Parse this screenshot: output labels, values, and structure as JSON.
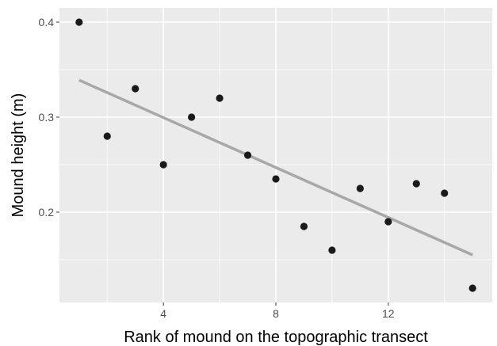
{
  "chart_data": {
    "type": "scatter",
    "title": "",
    "xlabel": "Rank of mound on the topographic transect",
    "ylabel": "Mound height (m)",
    "xlim": [
      0.3,
      15.7
    ],
    "ylim": [
      0.105,
      0.415
    ],
    "x_ticks": [
      4,
      8,
      12
    ],
    "x_tick_labels": [
      "4",
      "8",
      "12"
    ],
    "x_minor_ticks": [
      2,
      6,
      10,
      14
    ],
    "y_ticks": [
      0.2,
      0.3,
      0.4
    ],
    "y_tick_labels": [
      "0.2",
      "0.3",
      "0.4"
    ],
    "y_minor_ticks": [
      0.15,
      0.25,
      0.35
    ],
    "grid": true,
    "legend": "none",
    "colors": {
      "panel_background": "#ebebeb",
      "grid": "#ffffff",
      "points": "#1a1a1a",
      "trend_line": "#a8a8a8"
    },
    "series": [
      {
        "x": [
          1,
          2,
          3,
          4,
          5,
          6,
          7,
          8,
          9,
          10,
          11,
          12,
          13,
          14,
          15
        ],
        "y": [
          0.4,
          0.28,
          0.33,
          0.25,
          0.3,
          0.32,
          0.26,
          0.235,
          0.185,
          0.16,
          0.225,
          0.19,
          0.23,
          0.22,
          0.12
        ]
      }
    ],
    "trend_line": {
      "type": "linear",
      "x": [
        1,
        15
      ],
      "y": [
        0.339,
        0.155
      ]
    }
  }
}
